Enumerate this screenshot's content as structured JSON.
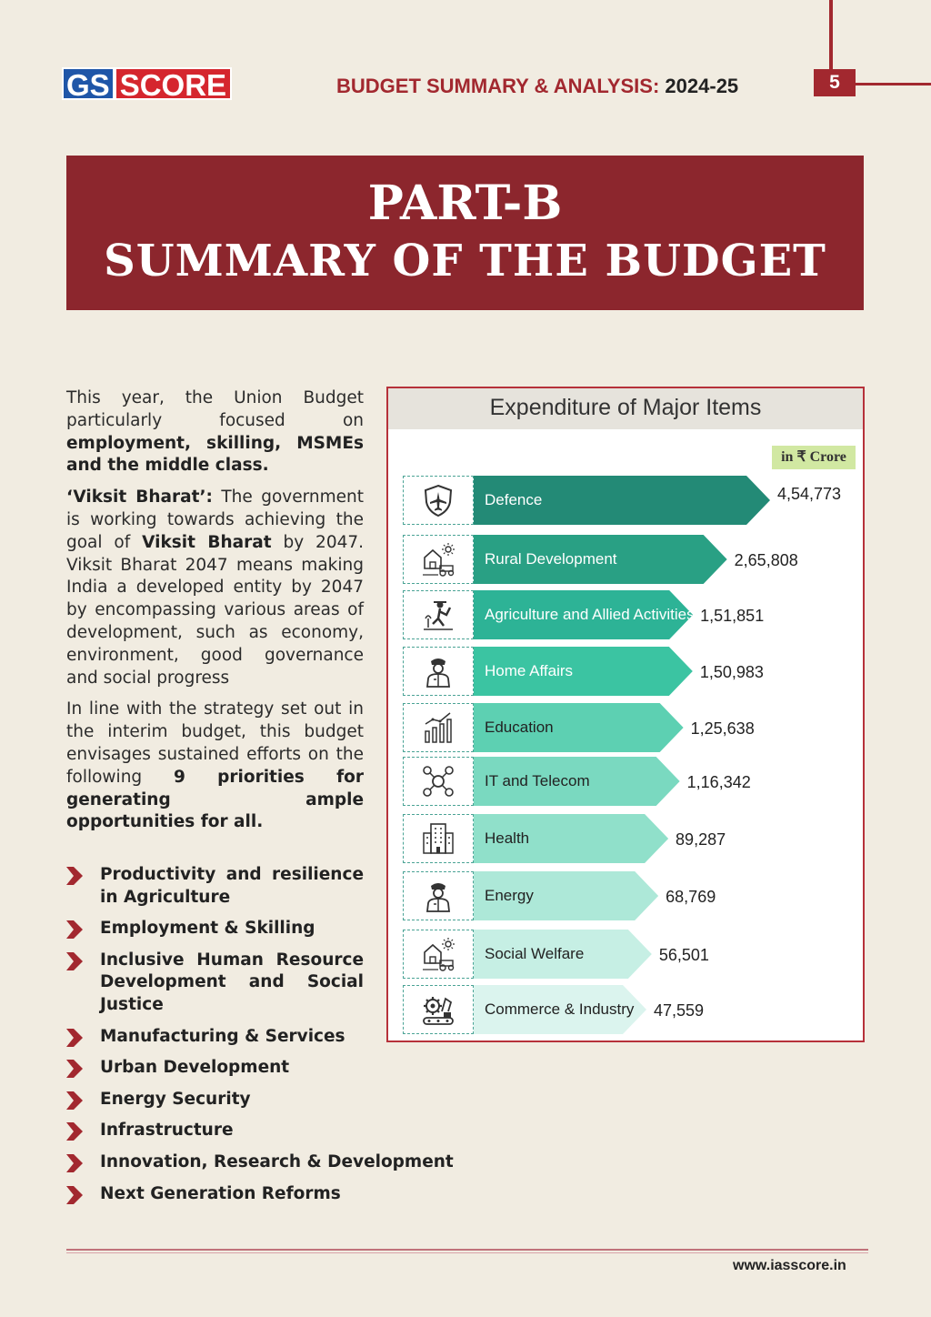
{
  "header": {
    "logo_gs": "GS",
    "logo_score": "SCORE",
    "title": "BUDGET SUMMARY & ANALYSIS:",
    "year": "2024-25",
    "page_number": "5"
  },
  "banner": {
    "line1": "PART-B",
    "line2": "SUMMARY OF THE BUDGET"
  },
  "body": {
    "p1_a": "This year, the Union Budget particularly focused on ",
    "p1_b": "employment, skilling, MSMEs and the middle class.",
    "p2_a": "‘Viksit Bharat’:",
    "p2_b": " The government is working towards achieving the goal of ",
    "p2_c": "Viksit Bharat",
    "p2_d": " by 2047. Viksit Bharat 2047 means making India a developed entity by 2047 by encompassing various areas of development, such as economy, environment, good governance and social progress",
    "p3_a": "In line with the strategy set out in the interim budget, this budget envisages sustained efforts on the following ",
    "p3_b": "9 priorities for generating ample opportunities for all."
  },
  "priorities": [
    "Productivity and resilience in Agriculture",
    "Employment & Skilling",
    "Inclusive Human Resource Development and Social Justice",
    "Manufacturing & Services",
    "Urban Development",
    "Energy Security",
    "Infrastructure",
    "Innovation, Research & Development",
    "Next Generation Reforms"
  ],
  "chart_data": {
    "type": "bar",
    "title": "Expenditure of Major Items",
    "unit": "in ₹ Crore",
    "categories": [
      "Defence",
      "Rural Development",
      "Agriculture and Allied Activities",
      "Home Affairs",
      "Education",
      "IT and Telecom",
      "Health",
      "Energy",
      "Social Welfare",
      "Commerce & Industry"
    ],
    "values": [
      454773,
      265808,
      151851,
      150983,
      125638,
      116342,
      89287,
      68769,
      56501,
      47559
    ],
    "value_labels": [
      "4,54,773",
      "2,65,808",
      "1,51,851",
      "1,50,983",
      "1,25,638",
      "1,16,342",
      "89,287",
      "68,769",
      "56,501",
      "47,559"
    ],
    "icons": [
      "shield-jet-icon",
      "village-tractor-icon",
      "farmer-icon",
      "police-officer-icon",
      "growth-chart-icon",
      "network-icon",
      "hospital-icon",
      "police-officer-icon",
      "village-tractor-icon",
      "factory-gear-icon"
    ],
    "colors": [
      "#238a76",
      "#29a084",
      "#2db396",
      "#3bc4a2",
      "#5dd0b2",
      "#7ad9c0",
      "#90e0ca",
      "#ade8d8",
      "#c6efe4",
      "#dbf4ee"
    ],
    "label_colors": [
      "#ffffff",
      "#ffffff",
      "#ffffff",
      "#ffffff",
      "#222222",
      "#222222",
      "#222222",
      "#222222",
      "#222222",
      "#222222"
    ]
  },
  "footer": {
    "website": "www.iasscore.in"
  }
}
